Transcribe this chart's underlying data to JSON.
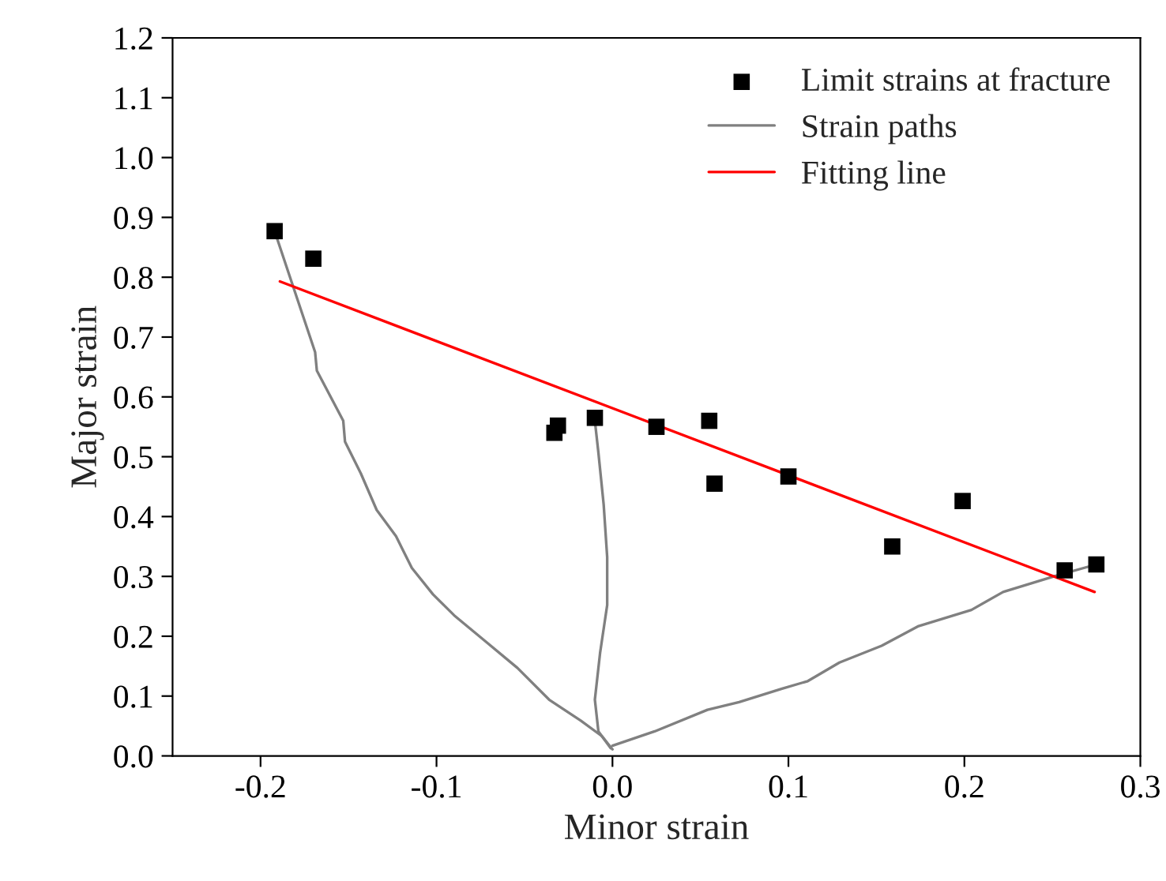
{
  "chart_data": {
    "type": "scatter",
    "xlabel": "Minor strain",
    "ylabel": "Major strain",
    "xlim": [
      -0.25,
      0.3
    ],
    "xticks": [
      -0.2,
      -0.1,
      {
        "value": 0,
        "label": "0.0"
      },
      0.1,
      0.2,
      0.3
    ],
    "ylim": [
      0,
      1.2
    ],
    "yticks": [
      {
        "value": 0,
        "label": "0.0"
      },
      0.1,
      0.2,
      0.3,
      0.4,
      0.5,
      0.6,
      0.7,
      0.8,
      0.9,
      {
        "value": 1,
        "label": "1.0"
      },
      1.1,
      1.2
    ],
    "grid": false,
    "legend": "top right",
    "series": [
      {
        "name": "Limit strains at fracture",
        "marker": "square",
        "color": "#000000",
        "x": [
          -0.192,
          -0.17,
          -0.033,
          -0.031,
          -0.01,
          0.025,
          0.055,
          0.058,
          0.1,
          0.159,
          0.199,
          0.257,
          0.275
        ],
        "values": [
          0.877,
          0.831,
          0.54,
          0.552,
          0.565,
          0.55,
          0.56,
          0.455,
          0.467,
          0.35,
          0.426,
          0.31,
          0.32
        ]
      },
      {
        "name": "Strain paths",
        "type": "line",
        "marker": "none",
        "color": "#808080",
        "x": [
          -0.192,
          -0.182,
          -0.169,
          -0.168,
          -0.153,
          -0.152,
          -0.143,
          -0.134,
          -0.123,
          -0.114,
          -0.102,
          -0.09,
          -0.072,
          -0.054,
          -0.036,
          -0.018,
          -0.006,
          0.0
        ],
        "values": [
          0.877,
          0.789,
          0.675,
          0.644,
          0.56,
          0.525,
          0.472,
          0.411,
          0.367,
          0.314,
          0.27,
          0.235,
          0.191,
          0.147,
          0.094,
          0.059,
          0.033,
          0.011
        ]
      },
      {
        "type": "line",
        "marker": "none",
        "color": "#808080",
        "x": [
          -0.01,
          -0.008,
          -0.005,
          -0.003,
          -0.003,
          -0.007,
          -0.01,
          -0.008,
          -0.001
        ],
        "values": [
          0.56,
          0.507,
          0.42,
          0.332,
          0.252,
          0.173,
          0.094,
          0.041,
          0.013
        ]
      },
      {
        "type": "line",
        "marker": "none",
        "color": "#808080",
        "x": [
          0.0,
          0.024,
          0.054,
          0.072,
          0.096,
          0.111,
          0.129,
          0.153,
          0.174,
          0.204,
          0.222,
          0.252,
          0.275
        ],
        "values": [
          0.017,
          0.041,
          0.077,
          0.09,
          0.112,
          0.125,
          0.156,
          0.184,
          0.217,
          0.244,
          0.274,
          0.301,
          0.32
        ]
      },
      {
        "name": "Fitting line",
        "type": "line",
        "marker": "none",
        "color": "#ff0000",
        "x": [
          -0.189,
          0.274
        ],
        "values": [
          0.793,
          0.274
        ]
      }
    ]
  }
}
